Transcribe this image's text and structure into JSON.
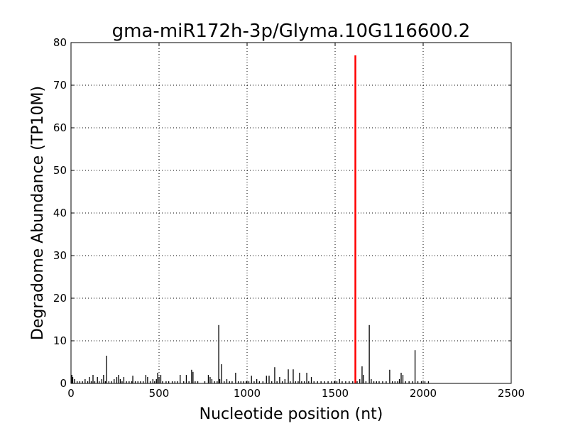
{
  "chart_data": {
    "type": "bar",
    "title": "gma-miR172h-3p/Glyma.10G116600.2",
    "xlabel": "Nucleotide position (nt)",
    "ylabel": "Degradome Abundance (TP10M)",
    "xlim": [
      0,
      2500
    ],
    "ylim": [
      0,
      80
    ],
    "xticks": [
      0,
      500,
      1000,
      1500,
      2000,
      2500
    ],
    "yticks": [
      0,
      10,
      20,
      30,
      40,
      50,
      60,
      70,
      80
    ],
    "grid": true,
    "colors": {
      "bars": "#000000",
      "highlight": "#ff0000"
    },
    "highlight": {
      "x": 1615,
      "y": 77
    },
    "series": [
      {
        "x": [
          5,
          10,
          20,
          35,
          50,
          65,
          80,
          95,
          105,
          115,
          125,
          135,
          150,
          160,
          175,
          185,
          195,
          202,
          215,
          230,
          245,
          260,
          270,
          280,
          290,
          300,
          315,
          330,
          345,
          351,
          365,
          380,
          395,
          410,
          425,
          435,
          450,
          465,
          475,
          485,
          492,
          500,
          510,
          520,
          540,
          555,
          575,
          590,
          605,
          620,
          640,
          655,
          670,
          685,
          693,
          705,
          720,
          760,
          780,
          790,
          800,
          815,
          830,
          839,
          845,
          855,
          870,
          885,
          900,
          915,
          935,
          950,
          965,
          980,
          995,
          1010,
          1025,
          1040,
          1055,
          1070,
          1090,
          1110,
          1125,
          1140,
          1157,
          1170,
          1185,
          1200,
          1215,
          1234,
          1245,
          1262,
          1275,
          1290,
          1298,
          1310,
          1325,
          1339,
          1350,
          1365,
          1380,
          1400,
          1420,
          1440,
          1460,
          1480,
          1495,
          1510,
          1525,
          1540,
          1560,
          1580,
          1600,
          1625,
          1640,
          1653,
          1660,
          1675,
          1694,
          1705,
          1720,
          1735,
          1750,
          1770,
          1790,
          1810,
          1825,
          1840,
          1855,
          1865,
          1875,
          1885,
          1900,
          1920,
          1940,
          1954,
          1970,
          1990,
          2010,
          2030
        ],
        "y": [
          2,
          1.5,
          1,
          0.5,
          0.5,
          0.5,
          1,
          0.5,
          1.5,
          0.5,
          2,
          0.5,
          1.5,
          0.5,
          1,
          2,
          0.5,
          6.5,
          0.5,
          0.5,
          1,
          1.5,
          2,
          1,
          0.5,
          1.5,
          0.5,
          0.5,
          0.5,
          1.8,
          0.5,
          0.5,
          0.5,
          0.5,
          2,
          1.5,
          0.5,
          1,
          0.5,
          1,
          2.5,
          1.5,
          2,
          0.5,
          0.5,
          0.5,
          0.5,
          0.5,
          0.5,
          2,
          0.5,
          2,
          0.5,
          3.2,
          2.7,
          0.5,
          0.5,
          0.5,
          2,
          1.5,
          1,
          0.5,
          0.5,
          13.7,
          1,
          4.5,
          0.5,
          1,
          0.5,
          0.5,
          2.5,
          0.5,
          0.5,
          0.5,
          0.5,
          0.5,
          1.8,
          0.5,
          1,
          0.5,
          0.5,
          1.8,
          1.8,
          0.5,
          3.8,
          0.5,
          1.5,
          0.5,
          1,
          3.3,
          0.5,
          3.3,
          0.5,
          0.5,
          2.5,
          0.5,
          0.5,
          2.5,
          0.5,
          1.5,
          0.5,
          0.5,
          0.5,
          0.5,
          0.5,
          0.5,
          0.5,
          0.5,
          1,
          0.5,
          0.5,
          0.5,
          0.5,
          0.5,
          1,
          4,
          2,
          0.5,
          13.7,
          1,
          0.5,
          0.5,
          0.5,
          0.5,
          0.5,
          3.2,
          0.5,
          0.5,
          0.5,
          1,
          2.5,
          2,
          0.5,
          0.5,
          0.5,
          7.8,
          0.5,
          0.5,
          0.5,
          0.5
        ]
      }
    ]
  }
}
